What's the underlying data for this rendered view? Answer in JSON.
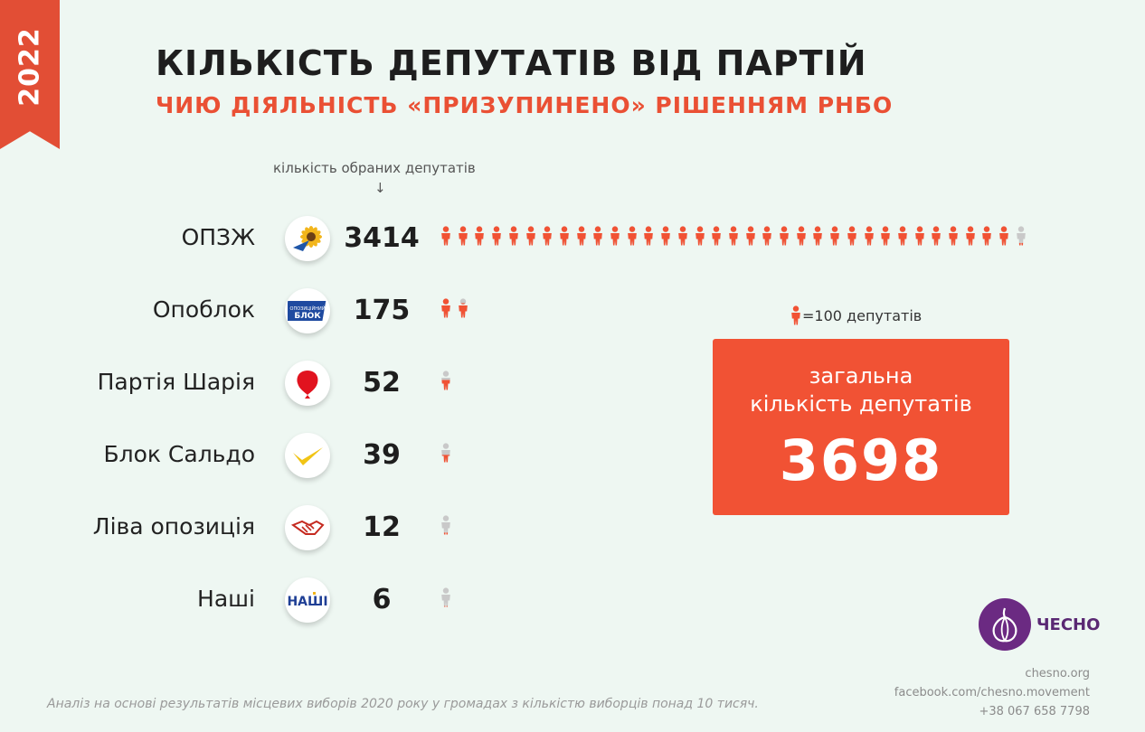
{
  "year": "2022",
  "header": {
    "title": "КІЛЬКІСТЬ ДЕПУТАТІВ ВІД ПАРТІЙ",
    "subtitle": "ЧИЮ ДІЯЛЬНІСТЬ «ПРИЗУПИНЕНО» РІШЕННЯМ РНБО"
  },
  "count_hint": "кількість обраних депутатів",
  "count_arrow": "↓",
  "legend": {
    "label": "=100 депутатів",
    "icon": "person-icon"
  },
  "total": {
    "label": "загальна\nкількість депутатів",
    "value": "3698"
  },
  "colors": {
    "accent": "#f15234",
    "icon_full": "#f15234",
    "icon_empty": "#c9c9c9",
    "brand": "#6b2a82"
  },
  "brand": {
    "name": "ЧЕСНО",
    "logo_icon": "garlic-icon"
  },
  "contacts": [
    "chesno.org",
    "facebook.com/chesno.movement",
    "+38 067 658 7798"
  ],
  "footnote": "Аналіз на основі результатів місцевих виборів 2020 року у громадах з кількістю виборців понад 10 тисяч.",
  "chart_data": {
    "type": "bar",
    "unit_per_icon": 100,
    "categories": [
      "ОПЗЖ",
      "Опоблок",
      "Партія Шарія",
      "Блок Сальдо",
      "Ліва опозиція",
      "Наші"
    ],
    "values": [
      3414,
      175,
      52,
      39,
      12,
      6
    ],
    "value_labels": [
      "3414",
      "175",
      "52",
      "39",
      "12",
      "6"
    ],
    "logos": [
      "sunflower-logo-icon",
      "opposition-bloc-logo-icon",
      "red-balloon-logo-icon",
      "checkmark-logo-icon",
      "handshake-logo-icon",
      "nashi-logo-icon"
    ],
    "xlabel": "кількість обраних депутатів"
  }
}
